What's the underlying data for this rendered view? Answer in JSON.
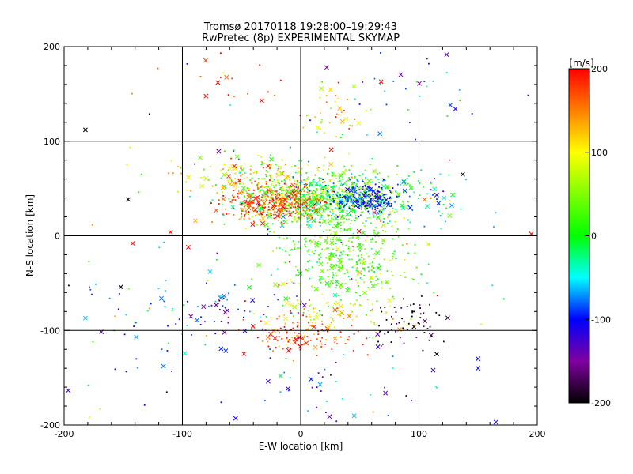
{
  "chart_data": {
    "type": "scatter",
    "title": "Tromsø 20170118 19:28:00–19:29:43",
    "subtitle": "RwPretec (8p) EXPERIMENTAL SKYMAP",
    "xlabel": "E-W location [km]",
    "ylabel": "N-S location [km]",
    "xlim": [
      -200,
      200
    ],
    "ylim": [
      -200,
      200
    ],
    "xticks": [
      "-200",
      "-100",
      "0",
      "100",
      "200"
    ],
    "yticks": [
      "-200",
      "-100",
      "0",
      "100",
      "200"
    ],
    "grid": true,
    "colorbar": {
      "label": "[m/s]",
      "min": -200,
      "max": 200,
      "ticks": [
        "200",
        "100",
        "0",
        "-100",
        "-200"
      ],
      "colormap": "rainbow (black-violet-blue-cyan-green-yellow-red)"
    },
    "markers": [
      "point",
      "cross"
    ],
    "clusters": [
      {
        "x": 20,
        "y": 40,
        "sx": 35,
        "sy": 14,
        "n": 900,
        "v": 20,
        "sv": 55
      },
      {
        "x": -20,
        "y": 35,
        "sx": 20,
        "sy": 10,
        "n": 300,
        "v": 175,
        "sv": 25
      },
      {
        "x": 55,
        "y": 40,
        "sx": 12,
        "sy": 8,
        "n": 200,
        "v": -100,
        "sv": 20
      },
      {
        "x": -40,
        "y": 65,
        "sx": 30,
        "sy": 10,
        "n": 150,
        "v": 90,
        "sv": 50
      },
      {
        "x": 35,
        "y": -25,
        "sx": 28,
        "sy": 25,
        "n": 400,
        "v": 30,
        "sv": 30
      },
      {
        "x": 25,
        "y": 130,
        "sx": 15,
        "sy": 15,
        "n": 40,
        "v": 130,
        "sv": 50
      },
      {
        "x": 0,
        "y": -105,
        "sx": 25,
        "sy": 10,
        "n": 120,
        "v": 180,
        "sv": 30
      },
      {
        "x": 20,
        "y": -85,
        "sx": 30,
        "sy": 10,
        "n": 80,
        "v": 110,
        "sv": 40
      },
      {
        "x": 90,
        "y": -90,
        "sx": 20,
        "sy": 15,
        "n": 60,
        "v": -200,
        "sv": 30
      },
      {
        "x": -60,
        "y": -80,
        "sx": 25,
        "sy": 15,
        "n": 60,
        "v": -90,
        "sv": 40
      },
      {
        "x": -140,
        "y": -100,
        "sx": 25,
        "sy": 40,
        "n": 40,
        "v": -60,
        "sv": 50
      },
      {
        "x": 30,
        "y": -160,
        "sx": 40,
        "sy": 20,
        "n": 40,
        "v": -90,
        "sv": 40
      },
      {
        "x": 110,
        "y": 160,
        "sx": 40,
        "sy": 30,
        "n": 25,
        "v": -100,
        "sv": 40
      },
      {
        "x": -60,
        "y": 170,
        "sx": 35,
        "sy": 20,
        "n": 15,
        "v": 180,
        "sv": 30
      },
      {
        "x": 110,
        "y": 40,
        "sx": 15,
        "sy": 20,
        "n": 30,
        "v": -40,
        "sv": 40
      },
      {
        "x": 0,
        "y": 0,
        "sx": 110,
        "sy": 110,
        "n": 120,
        "v": 0,
        "sv": 110
      }
    ],
    "points": [
      {
        "x": -182,
        "y": 112,
        "v": -200,
        "m": "x"
      },
      {
        "x": 68,
        "y": 163,
        "v": 200,
        "m": "x"
      },
      {
        "x": -70,
        "y": 162,
        "v": 200,
        "m": "x"
      },
      {
        "x": -33,
        "y": 143,
        "v": 200,
        "m": "x"
      },
      {
        "x": 137,
        "y": 65,
        "v": -200,
        "m": "x"
      },
      {
        "x": -110,
        "y": 4,
        "v": 200,
        "m": "x"
      },
      {
        "x": -142,
        "y": -8,
        "v": 200,
        "m": "x"
      },
      {
        "x": -95,
        "y": -12,
        "v": 200,
        "m": "x"
      },
      {
        "x": 195,
        "y": 2,
        "v": 200,
        "m": "x"
      },
      {
        "x": -182,
        "y": -87,
        "v": -60,
        "m": "x"
      },
      {
        "x": 150,
        "y": -130,
        "v": -100,
        "m": "x"
      },
      {
        "x": 150,
        "y": -140,
        "v": -100,
        "m": "x"
      },
      {
        "x": 112,
        "y": -142,
        "v": -120,
        "m": "x"
      },
      {
        "x": 115,
        "y": -125,
        "v": -200,
        "m": "x"
      },
      {
        "x": 105,
        "y": -90,
        "v": -170,
        "m": "x"
      },
      {
        "x": 45,
        "y": 158,
        "v": 60,
        "m": "x"
      },
      {
        "x": 22,
        "y": 178,
        "v": -150,
        "m": "x"
      },
      {
        "x": 67,
        "y": 108,
        "v": -80,
        "m": "x"
      },
      {
        "x": -55,
        "y": -193,
        "v": -110,
        "m": "x"
      },
      {
        "x": 165,
        "y": -197,
        "v": -110,
        "m": "x"
      }
    ]
  }
}
